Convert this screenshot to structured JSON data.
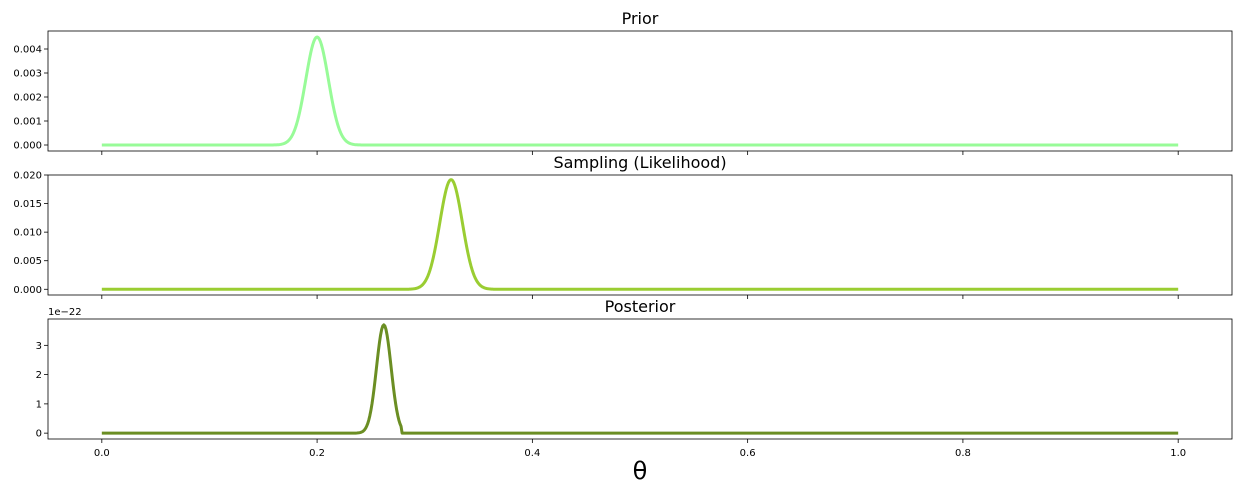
{
  "figure": {
    "xlabel": "θ",
    "x_tick_labels": [
      "0.0",
      "0.2",
      "0.4",
      "0.6",
      "0.8",
      "1.0"
    ]
  },
  "chart_data": [
    {
      "type": "line",
      "title": "Prior",
      "xlim": [
        -0.05,
        1.05
      ],
      "ylim": [
        -0.00025,
        0.00475
      ],
      "yticks": [
        0,
        0.001,
        0.002,
        0.003,
        0.004
      ],
      "y_tick_labels": [
        "0.000",
        "0.001",
        "0.002",
        "0.003",
        "0.004"
      ],
      "y_offset_label": "",
      "color": "#98fb98",
      "series": [
        {
          "shape": "gaussian",
          "x_range": [
            0,
            1
          ],
          "mean": 0.2,
          "sd": 0.0105,
          "peak": 0.0045
        }
      ]
    },
    {
      "type": "line",
      "title": "Sampling (Likelihood)",
      "xlim": [
        -0.05,
        1.05
      ],
      "ylim": [
        -0.001,
        0.02
      ],
      "yticks": [
        0,
        0.005,
        0.01,
        0.015,
        0.02
      ],
      "y_tick_labels": [
        "0.000",
        "0.005",
        "0.010",
        "0.015",
        "0.020"
      ],
      "y_offset_label": "",
      "color": "#9acd32",
      "series": [
        {
          "shape": "gaussian",
          "x_range": [
            0,
            1
          ],
          "mean": 0.3245,
          "sd": 0.0105,
          "peak": 0.0192
        }
      ]
    },
    {
      "type": "line",
      "title": "Posterior",
      "xlim": [
        -0.05,
        1.05
      ],
      "ylim": [
        -0.2,
        3.9
      ],
      "yticks": [
        0,
        1,
        2,
        3
      ],
      "y_tick_labels": [
        "0",
        "1",
        "2",
        "3"
      ],
      "y_offset_label": "1e−22",
      "color": "#6b8e23",
      "series": [
        {
          "shape": "gaussian",
          "x_range": [
            0,
            1
          ],
          "mean": 0.262,
          "sd": 0.0068,
          "peak": 3.7,
          "truncate_above": 0.278
        }
      ]
    }
  ]
}
